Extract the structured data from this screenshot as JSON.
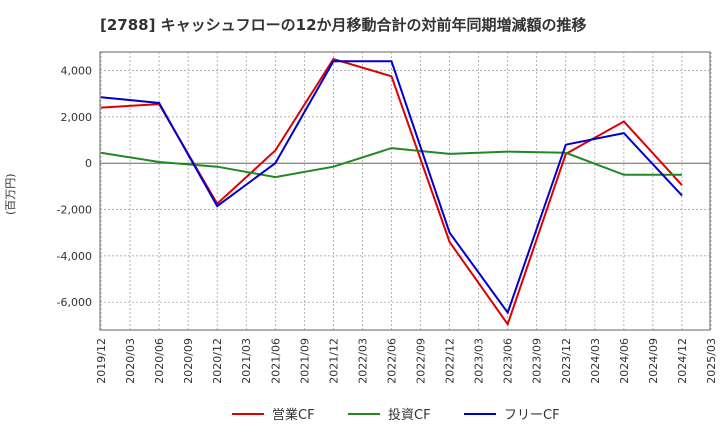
{
  "chart_data": {
    "type": "line",
    "title": "[2788]  キャッシュフローの12か月移動合計の対前年同期増減額の推移",
    "xlabel": "",
    "ylabel": "(百万円)",
    "ylim": [
      -7200,
      4800
    ],
    "yticks": [
      4000,
      2000,
      0,
      -2000,
      -4000,
      -6000
    ],
    "ytick_labels": [
      "4,000",
      "2,000",
      "0",
      "-2,000",
      "-4,000",
      "-6,000"
    ],
    "categories": [
      "2019/12",
      "2020/03",
      "2020/06",
      "2020/09",
      "2020/12",
      "2021/03",
      "2021/06",
      "2021/09",
      "2021/12",
      "2022/03",
      "2022/06",
      "2022/09",
      "2022/12",
      "2023/03",
      "2023/06",
      "2023/09",
      "2023/12",
      "2024/03",
      "2024/06",
      "2024/09",
      "2024/12",
      "2025/03"
    ],
    "series": [
      {
        "name": "営業CF",
        "color": "#dd0000",
        "values": [
          2400,
          null,
          2550,
          null,
          -1750,
          null,
          550,
          null,
          4500,
          null,
          3750,
          null,
          -3400,
          null,
          -6950,
          null,
          400,
          null,
          1800,
          null,
          -950,
          null
        ]
      },
      {
        "name": "投資CF",
        "color": "#228822",
        "values": [
          450,
          null,
          50,
          null,
          -150,
          null,
          -600,
          null,
          -150,
          null,
          650,
          null,
          400,
          null,
          500,
          null,
          450,
          null,
          -500,
          null,
          -500,
          null
        ]
      },
      {
        "name": "フリーCF",
        "color": "#0000cc",
        "values": [
          2850,
          null,
          2600,
          null,
          -1850,
          null,
          0,
          null,
          4400,
          null,
          4400,
          null,
          -3000,
          null,
          -6450,
          null,
          800,
          null,
          1300,
          null,
          -1400,
          null
        ]
      }
    ],
    "legend_position": "bottom",
    "grid": true
  }
}
